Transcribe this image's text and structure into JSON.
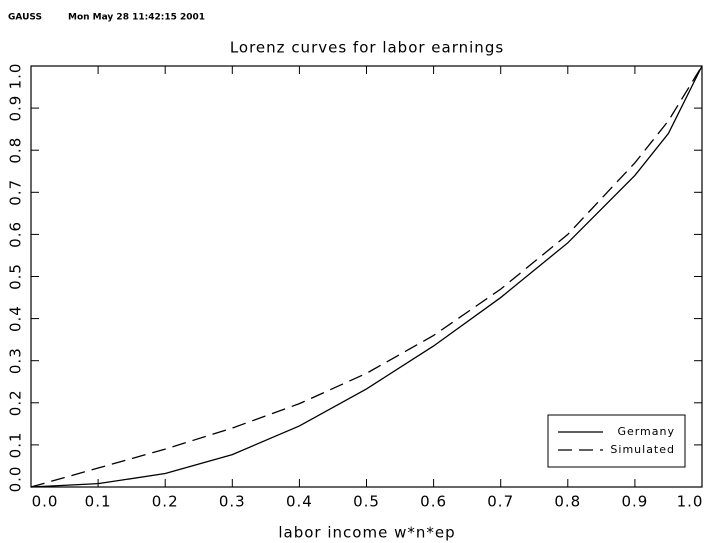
{
  "header": {
    "program": "GAUSS",
    "timestamp": "Mon May 28 11:42:15 2001"
  },
  "chart_data": {
    "type": "line",
    "title": "Lorenz curves for labor earnings",
    "xlabel": "labor income w*n*ep",
    "x": [
      0,
      0.1,
      0.2,
      0.3,
      0.4,
      0.5,
      0.6,
      0.7,
      0.8,
      0.9,
      0.95,
      1.0
    ],
    "series": [
      {
        "name": "Germany",
        "color": "#000000",
        "dash": "solid",
        "values": [
          0,
          0.008,
          0.032,
          0.077,
          0.145,
          0.233,
          0.335,
          0.45,
          0.58,
          0.74,
          0.84,
          1.0
        ]
      },
      {
        "name": "Simulated",
        "color": "#000000",
        "dash": "dashed",
        "values": [
          0,
          0.045,
          0.09,
          0.14,
          0.198,
          0.27,
          0.36,
          0.47,
          0.6,
          0.77,
          0.87,
          1.0
        ]
      }
    ],
    "xlim": [
      0,
      1
    ],
    "ylim": [
      0,
      1
    ],
    "xticks": [
      {
        "value": 0,
        "label": "0.0"
      },
      0.1,
      0.2,
      0.3,
      0.4,
      0.5,
      0.6,
      0.7,
      0.8,
      0.9,
      {
        "value": 1,
        "label": "1.0"
      }
    ],
    "yticks": [
      {
        "value": 0,
        "label": "0.0"
      },
      0.1,
      0.2,
      0.3,
      0.4,
      0.5,
      0.6,
      0.7,
      0.8,
      0.9,
      {
        "value": 1,
        "label": "1.0"
      }
    ],
    "legend": "lower right",
    "grid": false
  }
}
